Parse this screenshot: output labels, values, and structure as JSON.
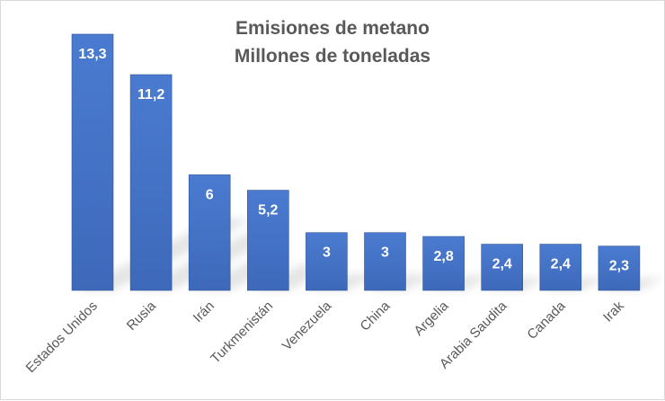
{
  "chart_data": {
    "type": "bar",
    "title": "Emisiones de metano",
    "subtitle": "Millones de toneladas",
    "categories": [
      "Estados Unidos",
      "Rusia",
      "Irán",
      "Turkmenistán",
      "Venezuela",
      "China",
      "Argelia",
      "Arabia Saudita",
      "Canada",
      "Irak"
    ],
    "values": [
      13.3,
      11.2,
      6,
      5.2,
      3,
      3,
      2.8,
      2.4,
      2.4,
      2.3
    ],
    "data_labels": [
      "13,3",
      "11,2",
      "6",
      "5,2",
      "3",
      "3",
      "2,8",
      "2,4",
      "2,4",
      "2,3"
    ],
    "xlabel": "",
    "ylabel": "",
    "ylim": [
      0,
      13.3
    ],
    "grid": false,
    "legend": "none",
    "bar_color": "#4472C4",
    "bar_color_dark": "#2F5597"
  }
}
